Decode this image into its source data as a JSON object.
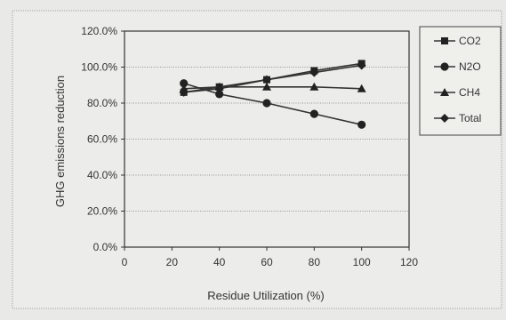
{
  "chart_data": {
    "type": "line",
    "title": "",
    "xlabel": "Residue Utilization (%)",
    "ylabel": "GHG emissions reduction",
    "xlim": [
      0,
      120
    ],
    "ylim": [
      0,
      120
    ],
    "x_ticks": [
      0,
      20,
      40,
      60,
      80,
      100,
      120
    ],
    "y_ticks": [
      0,
      20,
      40,
      60,
      80,
      100,
      120
    ],
    "x_tick_labels": [
      "0",
      "20",
      "40",
      "60",
      "80",
      "100",
      "120"
    ],
    "y_tick_labels": [
      "0.0%",
      "20.0%",
      "40.0%",
      "60.0%",
      "80.0%",
      "100.0%",
      "120.0%"
    ],
    "grid": "horizontal",
    "legend_position": "right",
    "series": [
      {
        "name": "CO2",
        "marker": "square",
        "x": [
          25,
          40,
          60,
          80,
          100
        ],
        "values": [
          86,
          89,
          93,
          98,
          102
        ]
      },
      {
        "name": "N2O",
        "marker": "circle",
        "x": [
          25,
          40,
          60,
          80,
          100
        ],
        "values": [
          91,
          85,
          80,
          74,
          68
        ]
      },
      {
        "name": "CH4",
        "marker": "triangle",
        "x": [
          25,
          40,
          60,
          80,
          100
        ],
        "values": [
          88,
          89,
          89,
          89,
          88
        ]
      },
      {
        "name": "Total",
        "marker": "diamond",
        "x": [
          25,
          40,
          60,
          80,
          100
        ],
        "values": [
          86,
          88,
          93,
          97,
          101
        ]
      }
    ]
  }
}
